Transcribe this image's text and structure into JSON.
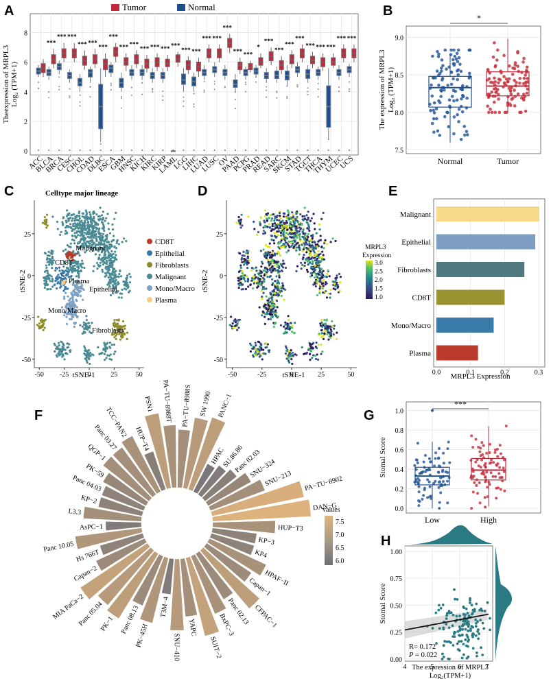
{
  "colors": {
    "tumor": "#c0283c",
    "normal": "#1e4e8c",
    "grid": "#e6e6e6",
    "point_blue": "#2a5b9b",
    "point_red": "#c7323f",
    "teal": "#2a7a84"
  },
  "panels": {
    "A": "A",
    "B": "B",
    "C": "C",
    "D": "D",
    "E": "E",
    "F": "F",
    "G": "G",
    "H": "H"
  },
  "chart_data": [
    {
      "id": "A",
      "type": "boxplot",
      "legend": [
        {
          "name": "Tumor"
        },
        {
          "name": "Normal"
        }
      ],
      "ylabel_line1": "Theexpression of MRPL3",
      "ylabel_line2": "Log₂ (TPM+1)",
      "ylim": [
        0,
        9
      ],
      "yticks": [
        "0",
        "2",
        "4",
        "6",
        "8"
      ],
      "categories": [
        "ACC",
        "BLCA",
        "BRCA",
        "CESC",
        "CHOL",
        "COAD",
        "DLBC",
        "ESCA",
        "GBM",
        "HNSC",
        "KICH",
        "KIRC",
        "KIRP",
        "LAML",
        "LGG",
        "LIHC",
        "LUAD",
        "LUSC",
        "OV",
        "PAAD",
        "PCPG",
        "PRAD",
        "READ",
        "SARC",
        "SKCM",
        "STAD",
        "TGCT",
        "THCA",
        "THYM",
        "UCEC",
        "UCS"
      ],
      "tumor": [
        [
          5.0,
          5.3,
          5.6,
          5.9,
          6.2
        ],
        [
          5.6,
          5.9,
          6.2,
          6.5,
          6.9
        ],
        [
          6.0,
          6.3,
          6.6,
          6.9,
          7.3
        ],
        [
          6.0,
          6.3,
          6.6,
          6.9,
          7.3
        ],
        [
          5.5,
          5.8,
          6.1,
          6.4,
          6.8
        ],
        [
          5.6,
          5.9,
          6.2,
          6.5,
          6.9
        ],
        [
          5.0,
          5.5,
          5.9,
          6.2,
          6.6
        ],
        [
          6.0,
          6.4,
          6.7,
          7.0,
          7.3
        ],
        [
          5.4,
          5.8,
          6.0,
          6.3,
          6.6
        ],
        [
          5.6,
          5.9,
          6.2,
          6.5,
          6.8
        ],
        [
          5.3,
          5.6,
          5.9,
          6.2,
          6.5
        ],
        [
          5.4,
          5.7,
          6.0,
          6.3,
          6.6
        ],
        [
          5.4,
          5.7,
          5.9,
          6.2,
          6.5
        ],
        [
          5.7,
          6.0,
          6.2,
          6.5,
          6.7
        ],
        [
          5.2,
          5.5,
          5.8,
          6.1,
          6.4
        ],
        [
          5.0,
          5.4,
          5.7,
          6.0,
          6.3
        ],
        [
          6.0,
          6.3,
          6.6,
          6.9,
          7.2
        ],
        [
          6.0,
          6.3,
          6.6,
          6.9,
          7.2
        ],
        [
          6.6,
          7.0,
          7.3,
          7.6,
          7.9
        ],
        [
          5.2,
          5.5,
          5.8,
          6.0,
          6.3
        ],
        [
          5.3,
          5.5,
          5.7,
          5.9,
          6.1
        ],
        [
          5.6,
          5.8,
          6.0,
          6.3,
          6.6
        ],
        [
          5.8,
          6.1,
          6.4,
          6.7,
          7.0
        ],
        [
          5.2,
          5.5,
          5.8,
          6.1,
          6.4
        ],
        [
          5.6,
          5.9,
          6.2,
          6.5,
          6.8
        ],
        [
          6.0,
          6.3,
          6.6,
          6.9,
          7.2
        ],
        [
          5.6,
          5.9,
          6.1,
          6.4,
          6.7
        ],
        [
          5.4,
          5.7,
          6.0,
          6.3,
          6.6
        ],
        [
          5.6,
          5.8,
          6.0,
          6.3,
          6.6
        ],
        [
          6.0,
          6.3,
          6.6,
          6.9,
          7.2
        ],
        [
          6.0,
          6.3,
          6.6,
          6.9,
          7.2
        ]
      ],
      "normal": [
        [
          5.0,
          5.2,
          5.4,
          5.6,
          5.8
        ],
        [
          4.8,
          5.1,
          5.3,
          5.5,
          5.7
        ],
        [
          5.2,
          5.5,
          5.7,
          5.9,
          6.1
        ],
        [
          4.6,
          4.9,
          5.1,
          5.3,
          5.5
        ],
        [
          4.0,
          4.4,
          4.6,
          4.9,
          5.2
        ],
        [
          4.6,
          5.0,
          5.3,
          5.5,
          5.7
        ],
        [
          0.6,
          1.5,
          3.0,
          4.5,
          5.6
        ],
        [
          5.0,
          5.3,
          5.6,
          5.8,
          6.0
        ],
        [
          4.0,
          4.3,
          4.6,
          4.9,
          5.3
        ],
        [
          4.8,
          5.1,
          5.3,
          5.5,
          5.8
        ],
        [
          4.8,
          5.1,
          5.3,
          5.5,
          5.8
        ],
        [
          4.6,
          4.9,
          5.1,
          5.3,
          5.6
        ],
        [
          4.6,
          4.9,
          5.1,
          5.3,
          5.6
        ],
        [
          0,
          0,
          0,
          0,
          0
        ],
        [
          4.0,
          4.5,
          4.8,
          5.2,
          5.6
        ],
        [
          4.0,
          4.4,
          4.7,
          5.0,
          5.3
        ],
        [
          4.8,
          5.1,
          5.3,
          5.5,
          5.8
        ],
        [
          5.0,
          5.3,
          5.5,
          5.7,
          6.0
        ],
        [
          4.8,
          5.1,
          5.3,
          5.5,
          5.8
        ],
        [
          4.0,
          4.3,
          4.5,
          4.8,
          5.2
        ],
        [
          4.8,
          5.1,
          5.3,
          5.5,
          5.7
        ],
        [
          5.0,
          5.2,
          5.4,
          5.6,
          5.8
        ],
        [
          4.6,
          4.9,
          5.1,
          5.3,
          5.6
        ],
        [
          4.6,
          4.9,
          5.1,
          5.4,
          5.7
        ],
        [
          4.4,
          4.8,
          5.1,
          5.4,
          5.8
        ],
        [
          5.0,
          5.3,
          5.5,
          5.7,
          6.0
        ],
        [
          4.6,
          4.9,
          5.2,
          5.5,
          5.8
        ],
        [
          4.8,
          5.1,
          5.3,
          5.5,
          5.7
        ],
        [
          0.8,
          1.6,
          3.0,
          4.4,
          5.6
        ],
        [
          4.8,
          5.1,
          5.3,
          5.5,
          5.8
        ],
        [
          5.0,
          5.3,
          5.5,
          5.7,
          5.9
        ]
      ],
      "signif": [
        "",
        "***",
        "***",
        "***",
        "***",
        "***",
        "***",
        "***",
        "***",
        "***",
        "***",
        "***",
        "***",
        "***",
        "***",
        "***",
        "***",
        "***",
        "***",
        "***",
        "***",
        "*",
        "***",
        "***",
        "***",
        "***",
        "***",
        "***",
        "***",
        "***",
        "***"
      ]
    },
    {
      "id": "B",
      "type": "boxplot",
      "categories": [
        "Normal",
        "Tumor"
      ],
      "boxes": [
        [
          7.6,
          8.07,
          8.33,
          8.48,
          8.78
        ],
        [
          8.0,
          8.22,
          8.35,
          8.54,
          8.98
        ]
      ],
      "ylabel_line1": "The expression of MRPL3",
      "ylabel_line2": "Log₂ (TPM+1)",
      "ylim": [
        7.45,
        9.15
      ],
      "yticks": [
        "7.5",
        "8.0",
        "8.5",
        "9.0"
      ],
      "signif": "*"
    },
    {
      "id": "C",
      "type": "scatter",
      "title": "Celltype major lineage",
      "xlabel": "tSNE-1",
      "ylabel": "tSNE-2",
      "xticks": [
        "-50",
        "-25",
        "0",
        "25",
        "50"
      ],
      "yticks": [
        "-50",
        "-25",
        "0",
        "25"
      ],
      "legend": [
        {
          "name": "CD8T",
          "color": "#b83a2a"
        },
        {
          "name": "Epithelial",
          "color": "#3b78a8"
        },
        {
          "name": "Fibroblasts",
          "color": "#8f8a2a"
        },
        {
          "name": "Malignant",
          "color": "#4a8a94"
        },
        {
          "name": "Mono/Macro",
          "color": "#7aa0c4"
        },
        {
          "name": "Plasma",
          "color": "#f2cd82"
        }
      ],
      "annotations": [
        "Malignant",
        "CD8T",
        "Plasma",
        "Epithelial",
        "Mono/Macro",
        "Fibroblasts"
      ]
    },
    {
      "id": "D",
      "type": "scatter",
      "xlabel": "tSNE-1",
      "ylabel": "tSNE-2",
      "xticks": [
        "-50",
        "-25",
        "0",
        "25",
        "50"
      ],
      "yticks": [
        "-50",
        "-25",
        "0",
        "25"
      ],
      "colorbar_title": "MRPL3",
      "colorbar_subtitle": "Expression",
      "colorbar_ticks": [
        "3.0",
        "2.5",
        "2.0",
        "1.5",
        "1.0"
      ]
    },
    {
      "id": "E",
      "type": "bar",
      "categories": [
        "Malignant",
        "Epithelial",
        "Fibroblasts",
        "CD8T",
        "Mono/Macro",
        "Plasma"
      ],
      "values": [
        0.302,
        0.29,
        0.258,
        0.2,
        0.168,
        0.122
      ],
      "colors": [
        "#f8d88a",
        "#7d9dc0",
        "#4e7a7f",
        "#9a9331",
        "#3a7aa8",
        "#b93a2a"
      ],
      "xlabel": "MRPL3 Expression",
      "xticks": [
        "0.0",
        "0.1",
        "0.2",
        "0.3"
      ],
      "xlim": [
        0,
        0.31
      ]
    },
    {
      "id": "F",
      "type": "circular-bar",
      "categories": [
        "PA−TU−8988S",
        "SW 1990",
        "PANC−1",
        "HPAC",
        "SU.86.86",
        "Panc 02.03",
        "SNU−324",
        "SNU−213",
        "PA−TU−8902",
        "DAN−G",
        "HUP−T3",
        "KP−3",
        "KP4",
        "HPAF−II",
        "Capan−1",
        "CFPAC−1",
        "Panc 02.13",
        "BxPC−3",
        "SUIT−2",
        "YAPC",
        "SNU−410",
        "T3M−4",
        "PK−45H",
        "Panc 08.13",
        "PK−1",
        "Panc 05.04",
        "MIA PaCa−2",
        "Capan−2",
        "Hs 766T",
        "Panc 10.05",
        "AsPC−1",
        "L3.3",
        "KP−2",
        "Panc 04.03",
        "PK−59",
        "QGP−1",
        "Panc 03.27",
        "TCC−PAN2",
        "HUP−T4",
        "PSN1",
        "PA−TU−8988T"
      ],
      "values": [
        6.9,
        7.2,
        7.3,
        6.3,
        6.4,
        6.5,
        6.7,
        6.9,
        7.7,
        7.8,
        7.0,
        6.6,
        6.6,
        7.0,
        6.8,
        7.3,
        6.8,
        7.0,
        7.4,
        6.9,
        7.2,
        6.4,
        7.1,
        6.8,
        7.3,
        7.2,
        7.4,
        6.8,
        6.6,
        7.1,
        6.4,
        6.9,
        6.6,
        6.6,
        6.7,
        6.9,
        6.9,
        7.0,
        6.5,
        7.3,
        7.0
      ],
      "legend_title": "values",
      "legend_ticks": [
        "7.5",
        "7.0",
        "6.5",
        "6.0"
      ]
    },
    {
      "id": "G",
      "type": "boxplot",
      "categories": [
        "Low",
        "High"
      ],
      "boxes": [
        [
          0.0,
          0.24,
          0.33,
          0.42,
          0.68
        ],
        [
          0.02,
          0.29,
          0.39,
          0.51,
          0.84
        ]
      ],
      "ylabel": "Stomal Score",
      "ylim": [
        -0.02,
        1.06
      ],
      "yticks": [
        "0.0",
        "0.2",
        "0.4",
        "0.6",
        "0.8",
        "1.0"
      ],
      "signif": "***"
    },
    {
      "id": "H",
      "type": "scatter",
      "xlabel_line1": "The expression of MRPL3",
      "xlabel_line2": "Log₂(TPM+1)",
      "ylabel": "Stomal Score",
      "xticks": [
        "4",
        "5",
        "6",
        "7"
      ],
      "yticks": [
        "0.00",
        "0.25",
        "0.50",
        "0.75",
        "1.00"
      ],
      "xlim": [
        4,
        7.2
      ],
      "ylim": [
        -0.02,
        1.05
      ],
      "fit": {
        "intercept": 0.078,
        "slope": 0.048
      },
      "stats_r": "R= 0.172",
      "stats_p_label": "P",
      "stats_p_value": " = 0.022"
    }
  ]
}
